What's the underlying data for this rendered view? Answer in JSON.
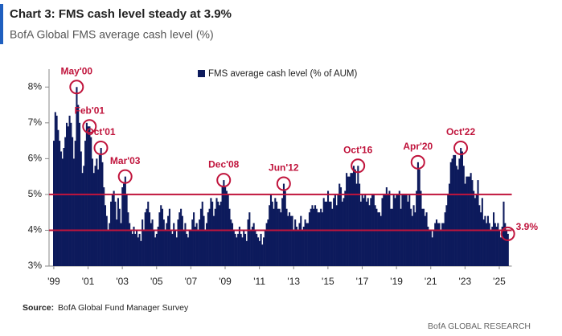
{
  "chart_data": {
    "type": "bar",
    "title": "Chart 3: FMS cash level steady at 3.9%",
    "subtitle": "BofA Global FMS average cash level (%)",
    "legend": "FMS average cash level (% of AUM)",
    "source_label": "Source:",
    "source": "BofA Global Fund Manager Survey",
    "footer": "BofA GLOBAL RESEARCH",
    "color": "#0d1a5c",
    "line_color": "#c0143c",
    "ylim": [
      3,
      8.5
    ],
    "yticks": [
      {
        "value": 3,
        "label": "3%"
      },
      {
        "value": 4,
        "label": "4%"
      },
      {
        "value": 5,
        "label": "5%"
      },
      {
        "value": 6,
        "label": "6%"
      },
      {
        "value": 7,
        "label": "7%"
      },
      {
        "value": 8,
        "label": "8%"
      }
    ],
    "reference_lines": [
      5,
      4
    ],
    "categories": [
      "'99",
      null,
      null,
      null,
      null,
      null,
      null,
      null,
      null,
      null,
      null,
      null,
      null,
      null,
      null,
      null,
      null,
      null,
      null,
      null,
      null,
      null,
      null,
      null,
      "'01",
      null,
      null,
      null,
      null,
      null,
      null,
      null,
      null,
      null,
      null,
      null,
      null,
      null,
      null,
      null,
      null,
      null,
      null,
      null,
      null,
      null,
      null,
      null,
      "'03",
      null,
      null,
      null,
      null,
      null,
      null,
      null,
      null,
      null,
      null,
      null,
      null,
      null,
      null,
      null,
      null,
      null,
      null,
      null,
      null,
      null,
      null,
      null,
      "'05",
      null,
      null,
      null,
      null,
      null,
      null,
      null,
      null,
      null,
      null,
      null,
      null,
      null,
      null,
      null,
      null,
      null,
      null,
      null,
      null,
      null,
      null,
      null,
      "'07",
      null,
      null,
      null,
      null,
      null,
      null,
      null,
      null,
      null,
      null,
      null,
      null,
      null,
      null,
      null,
      null,
      null,
      null,
      null,
      null,
      null,
      null,
      null,
      "'09",
      null,
      null,
      null,
      null,
      null,
      null,
      null,
      null,
      null,
      null,
      null,
      null,
      null,
      null,
      null,
      null,
      null,
      null,
      null,
      null,
      null,
      null,
      null,
      "'11",
      null,
      null,
      null,
      null,
      null,
      null,
      null,
      null,
      null,
      null,
      null,
      null,
      null,
      null,
      null,
      null,
      null,
      null,
      null,
      null,
      null,
      null,
      null,
      "'13",
      null,
      null,
      null,
      null,
      null,
      null,
      null,
      null,
      null,
      null,
      null,
      null,
      null,
      null,
      null,
      null,
      null,
      null,
      null,
      null,
      null,
      null,
      null,
      "'15",
      null,
      null,
      null,
      null,
      null,
      null,
      null,
      null,
      null,
      null,
      null,
      null,
      null,
      null,
      null,
      null,
      null,
      null,
      null,
      null,
      null,
      null,
      null,
      "'17",
      null,
      null,
      null,
      null,
      null,
      null,
      null,
      null,
      null,
      null,
      null,
      null,
      null,
      null,
      null,
      null,
      null,
      null,
      null,
      null,
      null,
      null,
      null,
      "'19",
      null,
      null,
      null,
      null,
      null,
      null,
      null,
      null,
      null,
      null,
      null,
      null,
      null,
      null,
      null,
      null,
      null,
      null,
      null,
      null,
      null,
      null,
      null,
      "'21",
      null,
      null,
      null,
      null,
      null,
      null,
      null,
      null,
      null,
      null,
      null,
      null,
      null,
      null,
      null,
      null,
      null,
      null,
      null,
      null,
      null,
      null,
      null,
      "'23",
      null,
      null,
      null,
      null,
      null,
      null,
      null,
      null,
      null,
      null,
      null,
      null,
      null,
      null,
      null,
      null,
      null,
      null,
      null,
      null,
      null,
      null,
      null,
      "'25",
      null,
      null,
      null,
      null,
      null,
      null
    ],
    "values": [
      6.5,
      7.3,
      7.2,
      6.8,
      6.5,
      6.2,
      6.0,
      6.3,
      6.6,
      7.0,
      6.9,
      7.2,
      7.0,
      6.6,
      6.0,
      6.5,
      8.0,
      7.5,
      7.0,
      6.2,
      5.6,
      5.8,
      6.5,
      7.0,
      6.9,
      6.9,
      6.6,
      6.0,
      5.6,
      5.8,
      6.0,
      5.7,
      6.1,
      6.3,
      5.9,
      5.2,
      4.7,
      4.4,
      4.0,
      4.2,
      4.8,
      5.0,
      5.1,
      4.8,
      4.3,
      4.9,
      4.6,
      4.2,
      5.2,
      5.3,
      5.5,
      5.0,
      4.5,
      4.2,
      4.0,
      3.9,
      4.1,
      3.9,
      4.0,
      3.8,
      3.9,
      3.7,
      4.3,
      4.0,
      4.5,
      4.6,
      4.8,
      4.5,
      4.2,
      4.3,
      4.0,
      3.8,
      3.9,
      4.1,
      4.5,
      4.7,
      4.6,
      4.3,
      4.0,
      4.2,
      4.4,
      4.6,
      4.0,
      3.9,
      4.2,
      4.0,
      3.8,
      4.3,
      4.5,
      4.6,
      4.4,
      4.0,
      4.2,
      3.9,
      3.8,
      4.0,
      4.0,
      4.3,
      4.5,
      4.1,
      4.2,
      4.0,
      4.3,
      4.6,
      4.8,
      4.4,
      4.0,
      4.2,
      4.5,
      4.6,
      4.9,
      4.8,
      4.4,
      4.6,
      4.9,
      4.8,
      4.7,
      4.8,
      5.2,
      5.4,
      5.2,
      5.1,
      5.0,
      4.6,
      4.3,
      4.2,
      4.0,
      3.9,
      3.8,
      3.9,
      4.1,
      3.9,
      3.8,
      4.0,
      3.9,
      3.7,
      4.3,
      4.5,
      4.0,
      4.1,
      4.2,
      4.0,
      3.9,
      3.8,
      3.7,
      3.9,
      3.6,
      3.8,
      4.0,
      4.2,
      4.3,
      4.7,
      5.0,
      4.8,
      4.6,
      4.9,
      4.8,
      4.6,
      4.6,
      4.5,
      4.9,
      5.3,
      5.1,
      4.6,
      4.4,
      4.5,
      4.4,
      4.4,
      4.0,
      4.3,
      4.1,
      4.0,
      4.2,
      4.4,
      4.0,
      4.1,
      4.3,
      4.2,
      4.2,
      4.5,
      4.6,
      4.7,
      4.6,
      4.7,
      4.6,
      4.5,
      4.5,
      4.6,
      4.5,
      4.9,
      4.8,
      4.8,
      5.1,
      4.8,
      4.8,
      4.6,
      4.9,
      5.0,
      4.7,
      5.0,
      5.3,
      5.2,
      4.8,
      4.9,
      5.1,
      5.6,
      5.5,
      5.5,
      5.6,
      5.6,
      5.8,
      5.7,
      5.3,
      5.8,
      5.3,
      4.8,
      5.0,
      4.9,
      5.0,
      4.8,
      4.9,
      4.7,
      4.9,
      5.0,
      5.0,
      4.7,
      4.6,
      4.5,
      4.5,
      4.4,
      4.9,
      5.0,
      5.0,
      5.2,
      5.0,
      5.1,
      4.6,
      4.6,
      5.0,
      4.9,
      5.0,
      5.0,
      5.1,
      4.6,
      5.0,
      5.0,
      5.0,
      5.0,
      4.8,
      5.0,
      4.6,
      4.4,
      4.7,
      4.5,
      5.1,
      5.9,
      5.7,
      5.1,
      4.6,
      4.6,
      4.4,
      4.5,
      4.1,
      4.0,
      4.0,
      3.8,
      4.0,
      4.2,
      4.3,
      4.2,
      4.2,
      4.0,
      4.2,
      4.2,
      4.5,
      4.7,
      5.0,
      5.3,
      5.9,
      6.0,
      6.1,
      6.1,
      5.8,
      5.7,
      6.0,
      6.3,
      6.2,
      5.8,
      5.3,
      5.5,
      5.5,
      5.5,
      5.6,
      5.4,
      5.1,
      4.9,
      5.0,
      5.4,
      4.7,
      4.5,
      4.9,
      4.3,
      4.4,
      4.2,
      4.4,
      4.2,
      4.0,
      4.1,
      4.5,
      4.2,
      4.1,
      4.2,
      4.0,
      3.8,
      4.1,
      4.8,
      4.2,
      4.0,
      3.9
    ],
    "annotations": [
      {
        "text": "May'00",
        "index": 16
      },
      {
        "text": "Feb'01",
        "index": 25
      },
      {
        "text": "Oct'01",
        "index": 33
      },
      {
        "text": "Mar'03",
        "index": 50
      },
      {
        "text": "Dec'08",
        "index": 119
      },
      {
        "text": "Jun'12",
        "index": 161
      },
      {
        "text": "Oct'16",
        "index": 213
      },
      {
        "text": "Apr'20",
        "index": 255
      },
      {
        "text": "Oct'22",
        "index": 285
      },
      {
        "text": "3.9%",
        "index": 318
      }
    ]
  }
}
